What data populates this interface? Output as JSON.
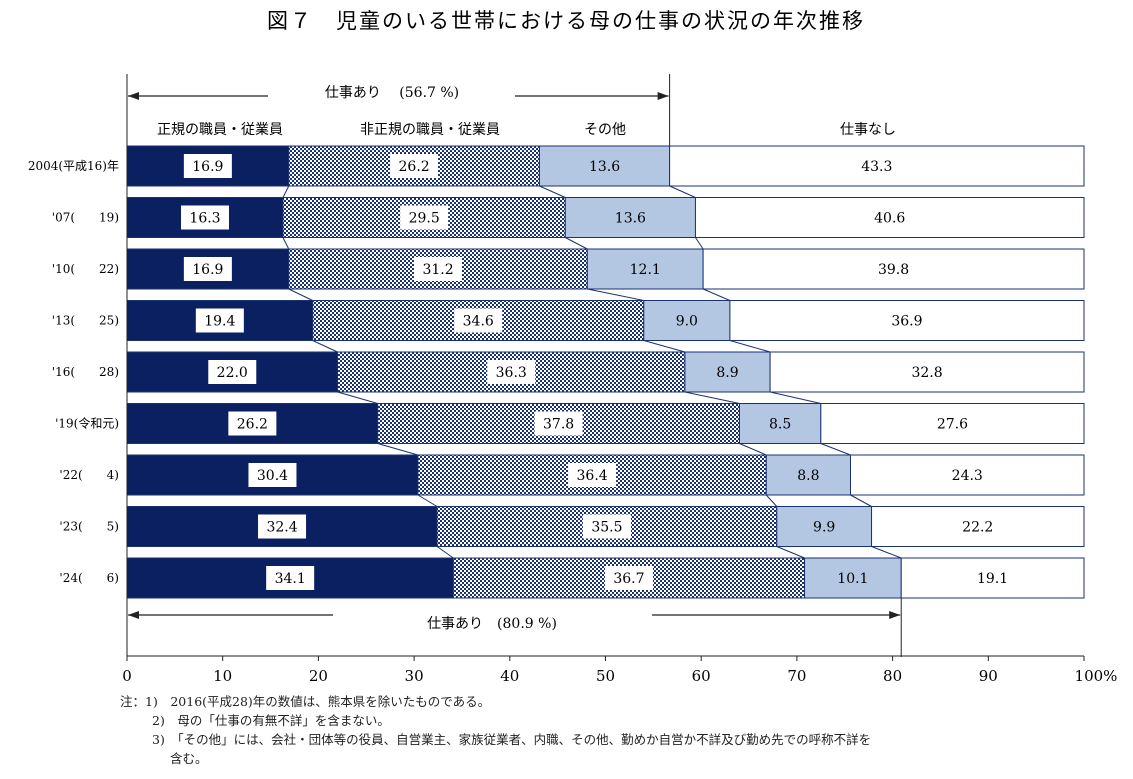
{
  "chart_data": {
    "type": "bar",
    "stacked": true,
    "orientation": "horizontal",
    "title": "図７　児童のいる世帯における母の仕事の状況の年次推移",
    "categories": [
      "2004(平成16)年",
      "'07(　　19)",
      "'10(　　22)",
      "'13(　　25)",
      "'16(　　28)",
      "'19(令和元)",
      "'22(　　4)",
      "'23(　　5)",
      "'24(　　6)"
    ],
    "series": [
      {
        "name": "正規の職員・従業員",
        "values": [
          16.9,
          16.3,
          16.9,
          19.4,
          22.0,
          26.2,
          30.4,
          32.4,
          34.1
        ]
      },
      {
        "name": "非正規の職員・従業員",
        "values": [
          26.2,
          29.5,
          31.2,
          34.6,
          36.3,
          37.8,
          36.4,
          35.5,
          36.7
        ]
      },
      {
        "name": "その他",
        "values": [
          13.6,
          13.6,
          12.1,
          9.0,
          8.9,
          8.5,
          8.8,
          9.9,
          10.1
        ]
      },
      {
        "name": "仕事なし",
        "values": [
          43.3,
          40.6,
          39.8,
          36.9,
          32.8,
          27.6,
          24.3,
          22.2,
          19.1
        ]
      }
    ],
    "value_labels": [
      [
        "16.9",
        "26.2",
        "13.6",
        "43.3"
      ],
      [
        "16.3",
        "29.5",
        "13.6",
        "40.6"
      ],
      [
        "16.9",
        "31.2",
        "12.1",
        "39.8"
      ],
      [
        "19.4",
        "34.6",
        "9.0",
        "36.9"
      ],
      [
        "22.0",
        "36.3",
        "8.9",
        "32.8"
      ],
      [
        "26.2",
        "37.8",
        "8.5",
        "27.6"
      ],
      [
        "30.4",
        "36.4",
        "8.8",
        "24.3"
      ],
      [
        "32.4",
        "35.5",
        "9.9",
        "22.2"
      ],
      [
        "34.1",
        "36.7",
        "10.1",
        "19.1"
      ]
    ],
    "xlim": [
      0,
      100
    ],
    "xticks": [
      "0",
      "10",
      "20",
      "30",
      "40",
      "50",
      "60",
      "70",
      "80",
      "90",
      "100%"
    ],
    "brackets": [
      {
        "label": "仕事あり　 (56.7 %)",
        "value": 56.7,
        "position": "top"
      },
      {
        "label": "仕事あり　(80.9 %)",
        "value": 80.9,
        "position": "bottom"
      }
    ],
    "colors": {
      "正規の職員・従業員": "#0b2060",
      "非正規の職員・従業員": "#1b3270",
      "その他": "#b4c7e2",
      "仕事なし": "#ffffff",
      "border": "#1b3270"
    },
    "grid": false,
    "legend": "top"
  },
  "notes": [
    "注：1)　2016(平成28)年の数値は、熊本県を除いたものである。",
    "2)　母の「仕事の有無不詳」を含まない。",
    "3)　「その他」には、会社・団体等の役員、自営業主、家族従業者、内職、その他、勤めか自営か不詳及び勤め先での呼称不詳を",
    "含む。"
  ]
}
